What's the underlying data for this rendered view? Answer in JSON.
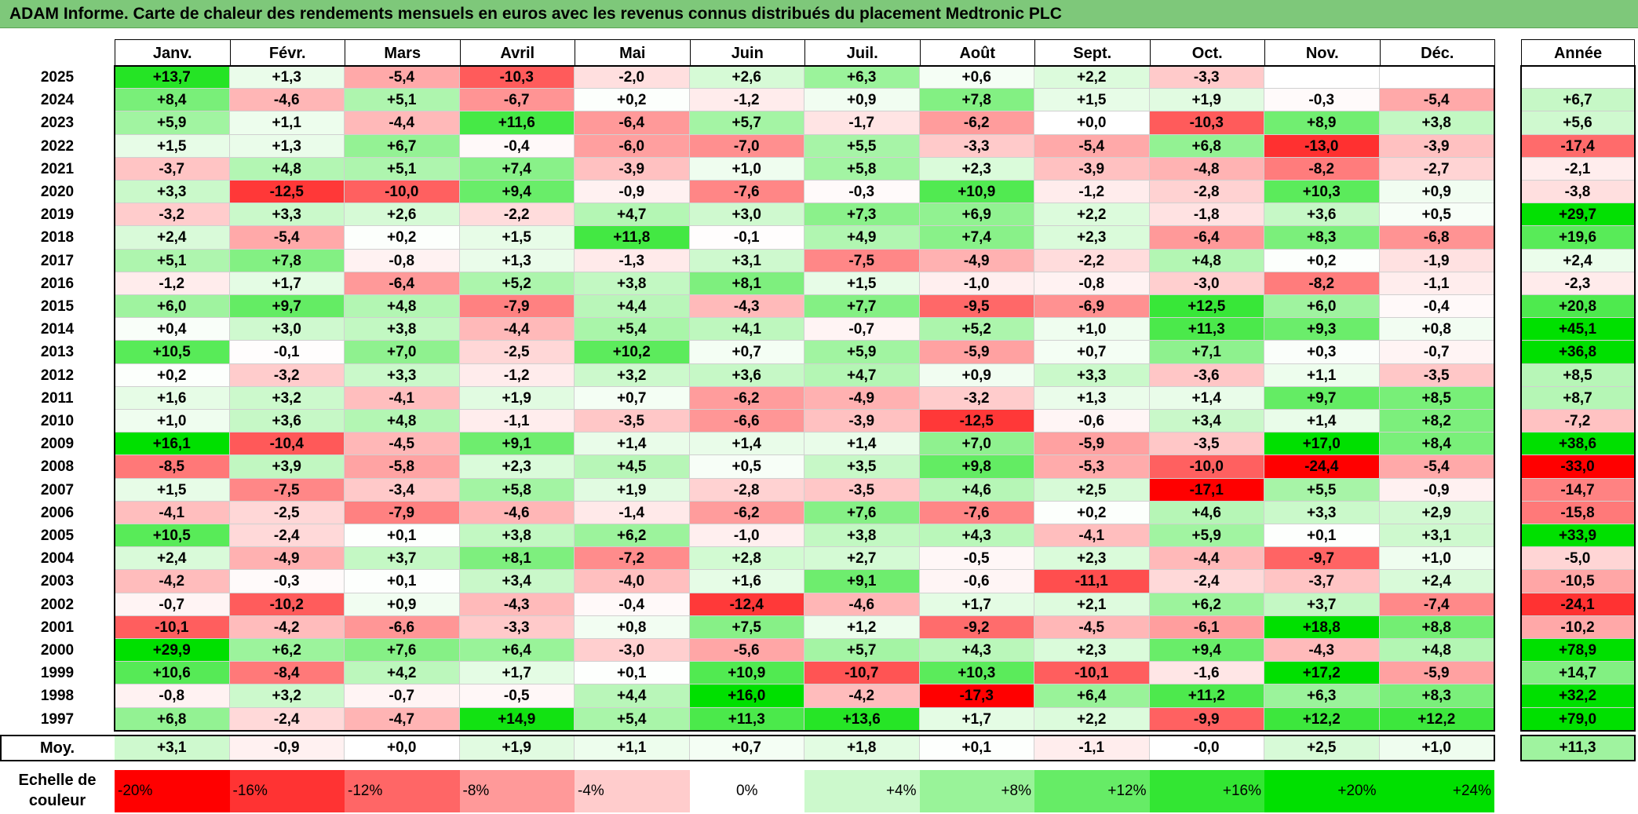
{
  "title": "ADAM Informe. Carte de chaleur des rendements mensuels en euros avec les revenus connus distribués du placement Medtronic PLC",
  "months": [
    "Janv.",
    "Févr.",
    "Mars",
    "Avril",
    "Mai",
    "Juin",
    "Juil.",
    "Août",
    "Sept.",
    "Oct.",
    "Nov.",
    "Déc."
  ],
  "year_header": "Année",
  "avg_label": "Moy.",
  "scale_label": "Echelle de couleur",
  "chart_data": {
    "type": "heatmap",
    "title": "ADAM Informe. Carte de chaleur des rendements mensuels en euros avec les revenus connus distribués du placement Medtronic PLC",
    "columns": [
      "Janv.",
      "Févr.",
      "Mars",
      "Avril",
      "Mai",
      "Juin",
      "Juil.",
      "Août",
      "Sept.",
      "Oct.",
      "Nov.",
      "Déc.",
      "Année"
    ],
    "rows": [
      {
        "year": "2025",
        "values": [
          "+13,7",
          "+1,3",
          "-5,4",
          "-10,3",
          "-2,0",
          "+2,6",
          "+6,3",
          "+0,6",
          "+2,2",
          "-3,3",
          "",
          ""
        ],
        "annual": ""
      },
      {
        "year": "2024",
        "values": [
          "+8,4",
          "-4,6",
          "+5,1",
          "-6,7",
          "+0,2",
          "-1,2",
          "+0,9",
          "+7,8",
          "+1,5",
          "+1,9",
          "-0,3",
          "-5,4"
        ],
        "annual": "+6,7"
      },
      {
        "year": "2023",
        "values": [
          "+5,9",
          "+1,1",
          "-4,4",
          "+11,6",
          "-6,4",
          "+5,7",
          "-1,7",
          "-6,2",
          "+0,0",
          "-10,3",
          "+8,9",
          "+3,8"
        ],
        "annual": "+5,6"
      },
      {
        "year": "2022",
        "values": [
          "+1,5",
          "+1,3",
          "+6,7",
          "-0,4",
          "-6,0",
          "-7,0",
          "+5,5",
          "-3,3",
          "-5,4",
          "+6,8",
          "-13,0",
          "-3,9"
        ],
        "annual": "-17,4"
      },
      {
        "year": "2021",
        "values": [
          "-3,7",
          "+4,8",
          "+5,1",
          "+7,4",
          "-3,9",
          "+1,0",
          "+5,8",
          "+2,3",
          "-3,9",
          "-4,8",
          "-8,2",
          "-2,7"
        ],
        "annual": "-2,1"
      },
      {
        "year": "2020",
        "values": [
          "+3,3",
          "-12,5",
          "-10,0",
          "+9,4",
          "-0,9",
          "-7,6",
          "-0,3",
          "+10,9",
          "-1,2",
          "-2,8",
          "+10,3",
          "+0,9"
        ],
        "annual": "-3,8"
      },
      {
        "year": "2019",
        "values": [
          "-3,2",
          "+3,3",
          "+2,6",
          "-2,2",
          "+4,7",
          "+3,0",
          "+7,3",
          "+6,9",
          "+2,2",
          "-1,8",
          "+3,6",
          "+0,5"
        ],
        "annual": "+29,7"
      },
      {
        "year": "2018",
        "values": [
          "+2,4",
          "-5,4",
          "+0,2",
          "+1,5",
          "+11,8",
          "-0,1",
          "+4,9",
          "+7,4",
          "+2,3",
          "-6,4",
          "+8,3",
          "-6,8"
        ],
        "annual": "+19,6"
      },
      {
        "year": "2017",
        "values": [
          "+5,1",
          "+7,8",
          "-0,8",
          "+1,3",
          "-1,3",
          "+3,1",
          "-7,5",
          "-4,9",
          "-2,2",
          "+4,8",
          "+0,2",
          "-1,9"
        ],
        "annual": "+2,4"
      },
      {
        "year": "2016",
        "values": [
          "-1,2",
          "+1,7",
          "-6,4",
          "+5,2",
          "+3,8",
          "+8,1",
          "+1,5",
          "-1,0",
          "-0,8",
          "-3,0",
          "-8,2",
          "-1,1"
        ],
        "annual": "-2,3"
      },
      {
        "year": "2015",
        "values": [
          "+6,0",
          "+9,7",
          "+4,8",
          "-7,9",
          "+4,4",
          "-4,3",
          "+7,7",
          "-9,5",
          "-6,9",
          "+12,5",
          "+6,0",
          "-0,4"
        ],
        "annual": "+20,8"
      },
      {
        "year": "2014",
        "values": [
          "+0,4",
          "+3,0",
          "+3,8",
          "-4,4",
          "+5,4",
          "+4,1",
          "-0,7",
          "+5,2",
          "+1,0",
          "+11,3",
          "+9,3",
          "+0,8"
        ],
        "annual": "+45,1"
      },
      {
        "year": "2013",
        "values": [
          "+10,5",
          "-0,1",
          "+7,0",
          "-2,5",
          "+10,2",
          "+0,7",
          "+5,9",
          "-5,9",
          "+0,7",
          "+7,1",
          "+0,3",
          "-0,7"
        ],
        "annual": "+36,8"
      },
      {
        "year": "2012",
        "values": [
          "+0,2",
          "-3,2",
          "+3,3",
          "-1,2",
          "+3,2",
          "+3,6",
          "+4,7",
          "+0,9",
          "+3,3",
          "-3,6",
          "+1,1",
          "-3,5"
        ],
        "annual": "+8,5"
      },
      {
        "year": "2011",
        "values": [
          "+1,6",
          "+3,2",
          "-4,1",
          "+1,9",
          "+0,7",
          "-6,2",
          "-4,9",
          "-3,2",
          "+1,3",
          "+1,4",
          "+9,7",
          "+8,5"
        ],
        "annual": "+8,7"
      },
      {
        "year": "2010",
        "values": [
          "+1,0",
          "+3,6",
          "+4,8",
          "-1,1",
          "-3,5",
          "-6,6",
          "-3,9",
          "-12,5",
          "-0,6",
          "+3,4",
          "+1,4",
          "+8,2"
        ],
        "annual": "-7,2"
      },
      {
        "year": "2009",
        "values": [
          "+16,1",
          "-10,4",
          "-4,5",
          "+9,1",
          "+1,4",
          "+1,4",
          "+1,4",
          "+7,0",
          "-5,9",
          "-3,5",
          "+17,0",
          "+8,4"
        ],
        "annual": "+38,6"
      },
      {
        "year": "2008",
        "values": [
          "-8,5",
          "+3,9",
          "-5,8",
          "+2,3",
          "+4,5",
          "+0,5",
          "+3,5",
          "+9,8",
          "-5,3",
          "-10,0",
          "-24,4",
          "-5,4"
        ],
        "annual": "-33,0"
      },
      {
        "year": "2007",
        "values": [
          "+1,5",
          "-7,5",
          "-3,4",
          "+5,8",
          "+1,9",
          "-2,8",
          "-3,5",
          "+4,6",
          "+2,5",
          "-17,1",
          "+5,5",
          "-0,9"
        ],
        "annual": "-14,7"
      },
      {
        "year": "2006",
        "values": [
          "-4,1",
          "-2,5",
          "-7,9",
          "-4,6",
          "-1,4",
          "-6,2",
          "+7,6",
          "-7,6",
          "+0,2",
          "+4,6",
          "+3,3",
          "+2,9"
        ],
        "annual": "-15,8"
      },
      {
        "year": "2005",
        "values": [
          "+10,5",
          "-2,4",
          "+0,1",
          "+3,8",
          "+6,2",
          "-1,0",
          "+3,8",
          "+4,3",
          "-4,1",
          "+5,9",
          "+0,1",
          "+3,1"
        ],
        "annual": "+33,9"
      },
      {
        "year": "2004",
        "values": [
          "+2,4",
          "-4,9",
          "+3,7",
          "+8,1",
          "-7,2",
          "+2,8",
          "+2,7",
          "-0,5",
          "+2,3",
          "-4,4",
          "-9,7",
          "+1,0"
        ],
        "annual": "-5,0"
      },
      {
        "year": "2003",
        "values": [
          "-4,2",
          "-0,3",
          "+0,1",
          "+3,4",
          "-4,0",
          "+1,6",
          "+9,1",
          "-0,6",
          "-11,1",
          "-2,4",
          "-3,7",
          "+2,4"
        ],
        "annual": "-10,5"
      },
      {
        "year": "2002",
        "values": [
          "-0,7",
          "-10,2",
          "+0,9",
          "-4,3",
          "-0,4",
          "-12,4",
          "-4,6",
          "+1,7",
          "+2,1",
          "+6,2",
          "+3,7",
          "-7,4"
        ],
        "annual": "-24,1"
      },
      {
        "year": "2001",
        "values": [
          "-10,1",
          "-4,2",
          "-6,6",
          "-3,3",
          "+0,8",
          "+7,5",
          "+1,2",
          "-9,2",
          "-4,5",
          "-6,1",
          "+18,8",
          "+8,8"
        ],
        "annual": "-10,2"
      },
      {
        "year": "2000",
        "values": [
          "+29,9",
          "+6,2",
          "+7,6",
          "+6,4",
          "-3,0",
          "-5,6",
          "+5,7",
          "+4,3",
          "+2,3",
          "+9,4",
          "-4,3",
          "+4,8"
        ],
        "annual": "+78,9"
      },
      {
        "year": "1999",
        "values": [
          "+10,6",
          "-8,4",
          "+4,2",
          "+1,7",
          "+0,1",
          "+10,9",
          "-10,7",
          "+10,3",
          "-10,1",
          "-1,6",
          "+17,2",
          "-5,9"
        ],
        "annual": "+14,7"
      },
      {
        "year": "1998",
        "values": [
          "-0,8",
          "+3,2",
          "-0,7",
          "-0,5",
          "+4,4",
          "+16,0",
          "-4,2",
          "-17,3",
          "+6,4",
          "+11,2",
          "+6,3",
          "+8,3"
        ],
        "annual": "+32,2"
      },
      {
        "year": "1997",
        "values": [
          "+6,8",
          "-2,4",
          "-4,7",
          "+14,9",
          "+5,4",
          "+11,3",
          "+13,6",
          "+1,7",
          "+2,2",
          "-9,9",
          "+12,2",
          "+12,2"
        ],
        "annual": "+79,0"
      }
    ],
    "averages": [
      "+3,1",
      "-0,9",
      "+0,0",
      "+1,9",
      "+1,1",
      "+0,7",
      "+1,8",
      "+0,1",
      "-1,1",
      "-0,0",
      "+2,5",
      "+1,0"
    ],
    "average_annual": "+11,3",
    "color_scale": [
      "-20%",
      "-16%",
      "-12%",
      "-8%",
      "-4%",
      "0%",
      "+4%",
      "+8%",
      "+12%",
      "+16%",
      "+20%",
      "+24%"
    ],
    "colors": {
      "negative_max": "#ff0000",
      "neutral": "#ffffff",
      "positive_max": "#00e000",
      "title_bg": "#7ec87a"
    }
  }
}
